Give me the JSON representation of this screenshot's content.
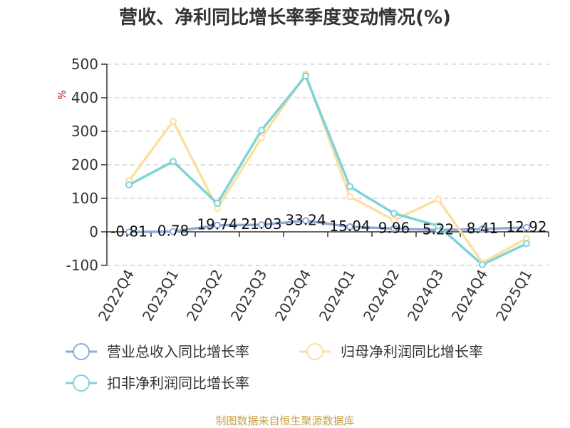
{
  "chart_data": {
    "type": "line",
    "title": "营收、净利同比增长率季度变动情况(%)",
    "ylabel": "%",
    "ylim": [
      -100,
      500
    ],
    "yticks": [
      -100,
      0,
      100,
      200,
      300,
      400,
      500
    ],
    "categories": [
      "2022Q4",
      "2023Q1",
      "2023Q2",
      "2023Q3",
      "2023Q4",
      "2024Q1",
      "2024Q2",
      "2024Q3",
      "2024Q4",
      "2025Q1"
    ],
    "grid": true,
    "legend_position": "bottom",
    "series": [
      {
        "name": "营业总收入同比增长率",
        "color": "#8FA9D8",
        "values": [
          -0.81,
          0.78,
          19.74,
          21.03,
          33.24,
          15.04,
          9.96,
          5.22,
          8.41,
          12.92
        ],
        "labels": [
          "-0.81",
          "0.78",
          "19.74",
          "21.03",
          "33.24",
          "15.04",
          "9.96",
          "5.22",
          "8.41",
          "12.92"
        ]
      },
      {
        "name": "归母净利润同比增长率",
        "color": "#FCDFA1",
        "values": [
          152,
          330,
          70,
          280,
          470,
          105,
          35,
          97,
          -92,
          -20
        ]
      },
      {
        "name": "扣非净利润同比增长率",
        "color": "#7ED3D8",
        "values": [
          140,
          210,
          85,
          303,
          465,
          135,
          55,
          18,
          -98,
          -35
        ]
      }
    ]
  },
  "source": "制图数据来自恒生聚源数据库",
  "colors": {
    "axis": "#333333",
    "grid": "#cccccc",
    "unit": "#cc0000",
    "source": "#c8a04a"
  }
}
